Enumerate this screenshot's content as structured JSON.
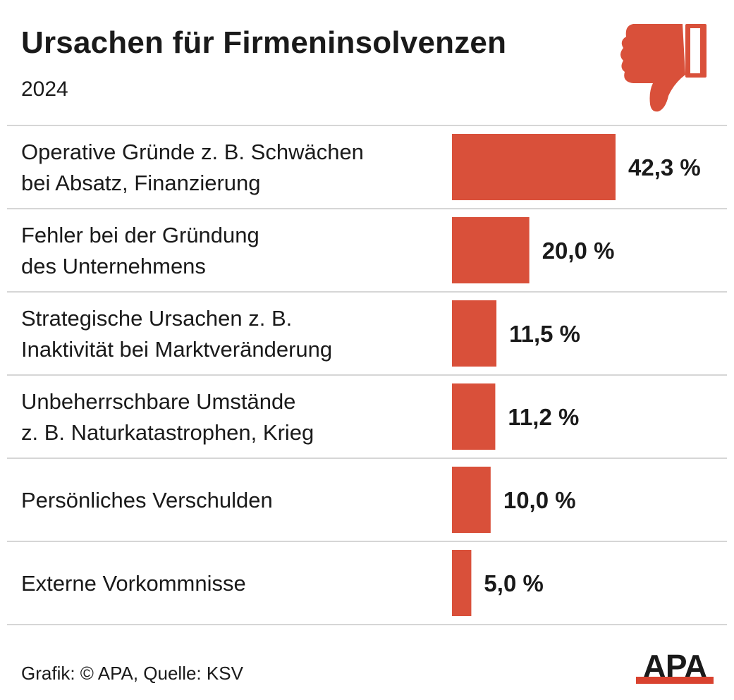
{
  "title": "Ursachen für Firmeninsolvenzen",
  "subtitle": "2024",
  "footer": "Grafik: © APA, Quelle: KSV",
  "logo_text": "APA",
  "icon": "thumbs-down-icon",
  "colors": {
    "bar": "#d9503a",
    "logo_accent": "#d9422f",
    "divider": "#d6d6d6",
    "text": "#1a1a1a"
  },
  "chart_data": {
    "type": "bar",
    "orientation": "horizontal",
    "categories": [
      [
        "Operative Gründe z. B. Schwächen",
        "bei Absatz, Finanzierung"
      ],
      [
        "Fehler bei der Gründung",
        "des Unternehmens"
      ],
      [
        "Strategische Ursachen z. B.",
        "Inaktivität bei Marktveränderung"
      ],
      [
        "Unbeherrschbare Umstände",
        "z. B. Naturkatastrophen, Krieg"
      ],
      [
        "Persönliches Verschulden"
      ],
      [
        "Externe Vorkommnisse"
      ]
    ],
    "values": [
      42.3,
      20.0,
      11.5,
      11.2,
      10.0,
      5.0
    ],
    "value_labels": [
      "42,3 %",
      "20,0 %",
      "11,5 %",
      "11,2 %",
      "10,0 %",
      "5,0 %"
    ],
    "unit": "%",
    "grid": false,
    "legend": "none"
  }
}
